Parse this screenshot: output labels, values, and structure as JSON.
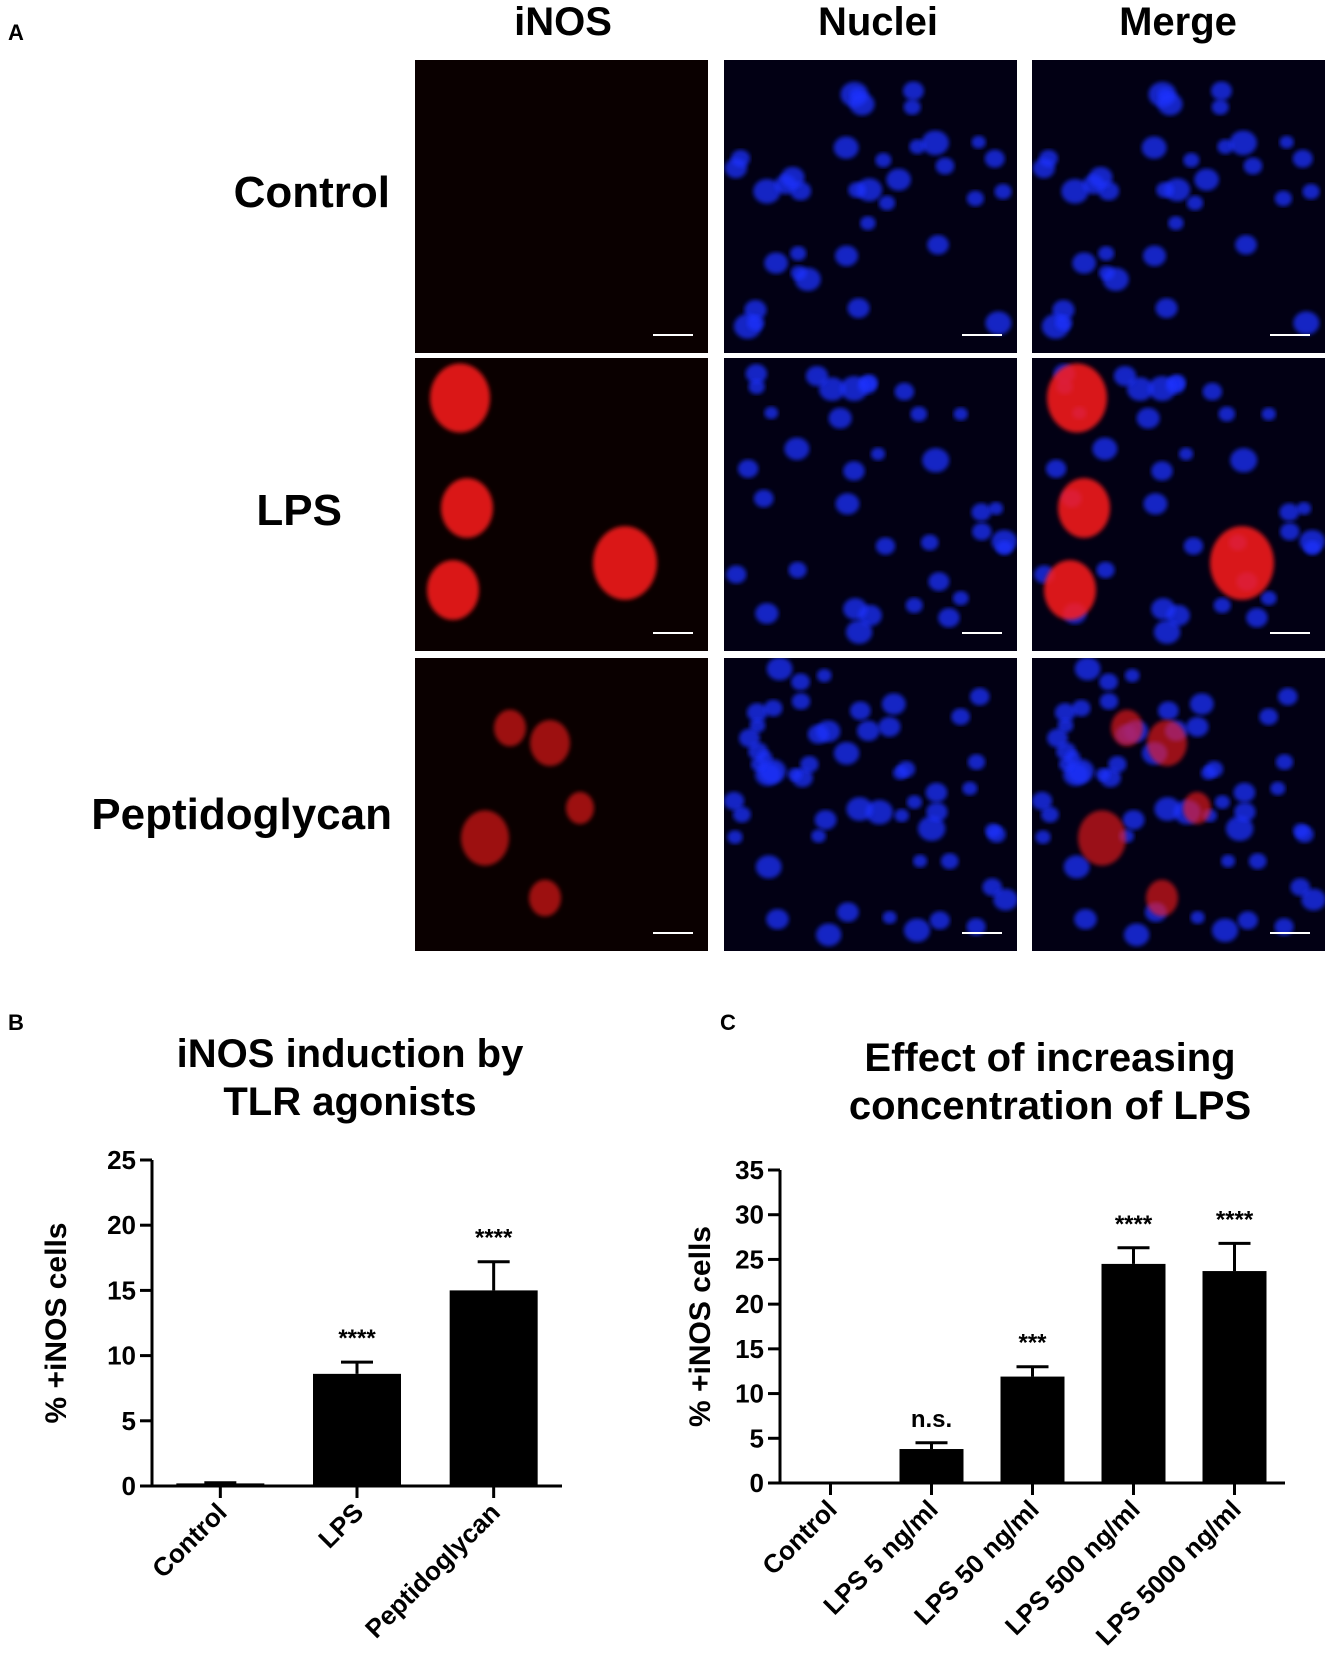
{
  "panel_a": {
    "letter": "A",
    "columns": [
      "iNOS",
      "Nuclei",
      "Merge"
    ],
    "rows": [
      "Control",
      "LPS",
      "Peptidoglycan"
    ],
    "colors": {
      "background": "#050008",
      "red_signal": "#ff1a1a",
      "blue_signal": "#1a30ff"
    }
  },
  "chart_data": [
    {
      "panel_letter": "B",
      "type": "bar",
      "title": "iNOS induction by TLR agonists",
      "title_lines": [
        "iNOS induction by",
        "TLR agonists"
      ],
      "ylabel": "% +iNOS cells",
      "xlabel": "",
      "categories": [
        "Control",
        "LPS",
        "Peptidoglycan"
      ],
      "values": [
        0.2,
        8.6,
        15.0
      ],
      "errors": [
        0.05,
        0.9,
        2.2
      ],
      "annotations": [
        "",
        "****",
        "****"
      ],
      "ylim": [
        0,
        25
      ],
      "yticks": [
        0,
        5,
        10,
        15,
        20,
        25
      ],
      "grid": false,
      "bar_color": "#000000"
    },
    {
      "panel_letter": "C",
      "type": "bar",
      "title": "Effect of increasing concentration of LPS",
      "title_lines": [
        "Effect of increasing",
        "concentration of LPS"
      ],
      "ylabel": "% +iNOS  cells",
      "xlabel": "",
      "categories": [
        "Control",
        "LPS 5 ng/ml",
        "LPS 50 ng/ml",
        "LPS 500 ng/ml",
        "LPS 5000 ng/ml"
      ],
      "values": [
        0.0,
        3.8,
        11.9,
        24.5,
        23.7
      ],
      "errors": [
        0.0,
        0.7,
        1.1,
        1.8,
        3.1
      ],
      "annotations": [
        "",
        "n.s.",
        "***",
        "****",
        "****"
      ],
      "ylim": [
        0,
        35
      ],
      "yticks": [
        0,
        5,
        10,
        15,
        20,
        25,
        30,
        35
      ],
      "grid": false,
      "bar_color": "#000000"
    }
  ]
}
